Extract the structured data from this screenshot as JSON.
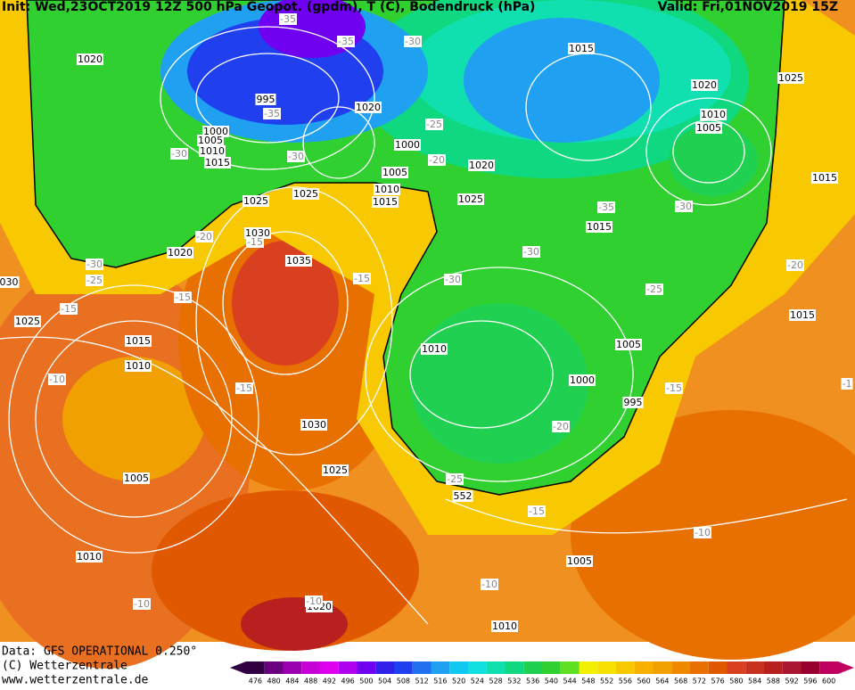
{
  "header": {
    "left": "Init: Wed,23OCT2019 12Z 500 hPa Geopot. (gpdm), T (C), Bodendruck (hPa)",
    "right": "Valid: Fri,01NOV2019 15Z"
  },
  "footer": {
    "lines": [
      "Data: GFS OPERATIONAL 0.250°",
      "(C) Wetterzentrale",
      "www.wetterzentrale.de"
    ]
  },
  "legend": {
    "values": [
      476,
      480,
      484,
      488,
      492,
      496,
      500,
      504,
      508,
      512,
      516,
      520,
      524,
      528,
      532,
      536,
      540,
      544,
      548,
      552,
      556,
      560,
      564,
      568,
      572,
      576,
      580,
      584,
      588,
      592,
      596,
      600
    ],
    "colors": [
      "#300040",
      "#6a0080",
      "#9a00b0",
      "#c800d8",
      "#e000f0",
      "#b000f0",
      "#7000f0",
      "#3020e8",
      "#2040f0",
      "#2070f0",
      "#20a0f0",
      "#10c8f0",
      "#10e0e0",
      "#10e0b0",
      "#10d880",
      "#20d050",
      "#30d030",
      "#60e020",
      "#f0f000",
      "#f8e000",
      "#f8c800",
      "#f8b000",
      "#f0a000",
      "#f08800",
      "#e87000",
      "#e05800",
      "#d84020",
      "#c83020",
      "#b82020",
      "#a81830",
      "#980030",
      "#c00060"
    ]
  },
  "pressure_labels": [
    "1020",
    "995",
    "1000",
    "1005",
    "1010",
    "1015",
    "1020",
    "1000",
    "1005",
    "1010",
    "1015",
    "1025",
    "1025",
    "1030",
    "1020",
    "1035",
    "1025",
    "1015",
    "1010",
    "1005",
    "1010",
    "1030",
    "1025",
    "1020",
    "1010",
    "1005",
    "995",
    "1000",
    "1005",
    "1010",
    "1015",
    "1025",
    "1020",
    "1015",
    "1020",
    "1010",
    "1005",
    "1025",
    "1015",
    "1015",
    "552",
    "030"
  ],
  "temperature_labels": [
    "-35",
    "-35",
    "-30",
    "-35",
    "-30",
    "-30",
    "-25",
    "-20",
    "-35",
    "-30",
    "-20",
    "-15",
    "-30",
    "-25",
    "-15",
    "-15",
    "-15",
    "-30",
    "-30",
    "-25",
    "-20",
    "-15",
    "-10",
    "-15",
    "-20",
    "-25",
    "-15",
    "-10",
    "-10",
    "-10",
    "-10",
    "-1"
  ]
}
